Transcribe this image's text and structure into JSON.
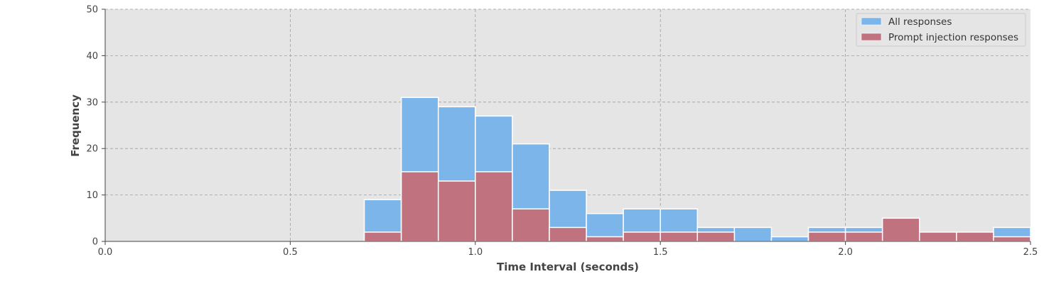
{
  "chart_data": {
    "type": "bar",
    "xlabel": "Time Interval (seconds)",
    "ylabel": "Frequency",
    "xlim": [
      0,
      2.5
    ],
    "ylim": [
      0,
      50
    ],
    "xticks": [
      "0.0",
      "0.5",
      "1.0",
      "1.5",
      "2.0",
      "2.5"
    ],
    "yticks": [
      "0",
      "10",
      "20",
      "30",
      "40",
      "50"
    ],
    "bin_width": 0.1,
    "bin_starts": [
      0.7,
      0.8,
      0.9,
      1.0,
      1.1,
      1.2,
      1.3,
      1.4,
      1.5,
      1.6,
      1.7,
      1.8,
      1.9,
      2.0,
      2.1,
      2.2,
      2.3,
      2.4
    ],
    "series": [
      {
        "name": "All responses",
        "color": "#7cb5ea",
        "values": [
          9,
          31,
          29,
          27,
          21,
          11,
          6,
          7,
          7,
          3,
          3,
          1,
          3,
          3,
          0,
          0,
          0,
          3
        ]
      },
      {
        "name": "Prompt injection responses",
        "color": "#c0737f",
        "values": [
          2,
          15,
          13,
          15,
          7,
          3,
          1,
          2,
          2,
          2,
          0,
          0,
          2,
          2,
          5,
          2,
          2,
          1
        ]
      }
    ],
    "grid": true,
    "legend_position": "top-right",
    "background": "#e5e5e5"
  }
}
